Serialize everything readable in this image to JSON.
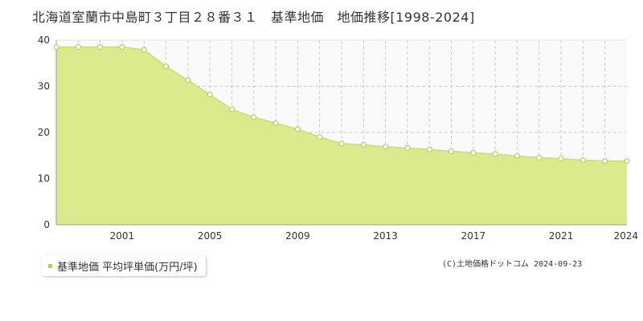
{
  "title": "北海道室蘭市中島町３丁目２８番３１　基準地価　地価推移[1998-2024]",
  "credit": "(C)土地価格ドットコム 2024-09-23",
  "colors": {
    "fill": "#d9eb8d",
    "line": "#c8e06a",
    "marker_stroke": "#b5d15a",
    "grid": "#cccccc",
    "empty_area": "#fafafa"
  },
  "chart_data": {
    "type": "area",
    "title": "北海道室蘭市中島町３丁目２８番３１　基準地価　地価推移[1998-2024]",
    "xlabel": "",
    "ylabel": "",
    "ylim": [
      0,
      40
    ],
    "xlim": [
      1998,
      2024
    ],
    "yticks": [
      "0",
      "10",
      "20",
      "30",
      "40"
    ],
    "xticks": [
      "2001",
      "2005",
      "2009",
      "2013",
      "2017",
      "2021",
      "2024"
    ],
    "grid": true,
    "legend_position": "bottom-left",
    "series": [
      {
        "name": "基準地価 平均坪単価(万円/坪)",
        "x": [
          1998,
          1999,
          2000,
          2001,
          2002,
          2003,
          2004,
          2005,
          2006,
          2007,
          2008,
          2009,
          2010,
          2011,
          2012,
          2013,
          2014,
          2015,
          2016,
          2017,
          2018,
          2019,
          2020,
          2021,
          2022,
          2023,
          2024
        ],
        "values": [
          38.5,
          38.5,
          38.5,
          38.5,
          37.9,
          34.3,
          31.3,
          28.2,
          25.0,
          23.3,
          22.0,
          20.7,
          19.0,
          17.6,
          17.3,
          16.9,
          16.6,
          16.3,
          15.9,
          15.6,
          15.3,
          14.9,
          14.5,
          14.3,
          14.0,
          13.8,
          13.8
        ]
      }
    ]
  }
}
